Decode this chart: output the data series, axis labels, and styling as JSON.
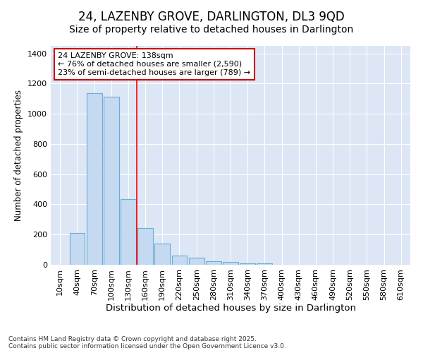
{
  "title": "24, LAZENBY GROVE, DARLINGTON, DL3 9QD",
  "subtitle": "Size of property relative to detached houses in Darlington",
  "xlabel": "Distribution of detached houses by size in Darlington",
  "ylabel": "Number of detached properties",
  "categories": [
    "10sqm",
    "40sqm",
    "70sqm",
    "100sqm",
    "130sqm",
    "160sqm",
    "190sqm",
    "220sqm",
    "250sqm",
    "280sqm",
    "310sqm",
    "340sqm",
    "370sqm",
    "400sqm",
    "430sqm",
    "460sqm",
    "490sqm",
    "520sqm",
    "550sqm",
    "580sqm",
    "610sqm"
  ],
  "values": [
    0,
    210,
    1135,
    1115,
    435,
    245,
    140,
    60,
    45,
    25,
    20,
    10,
    10,
    0,
    0,
    0,
    0,
    0,
    0,
    0,
    0
  ],
  "bar_color": "#c5d9f0",
  "bar_edge_color": "#6baed6",
  "plot_bg_color": "#dce6f5",
  "fig_bg_color": "#ffffff",
  "grid_color": "#ffffff",
  "red_line_x": 4.5,
  "annotation_text": "24 LAZENBY GROVE: 138sqm\n← 76% of detached houses are smaller (2,590)\n23% of semi-detached houses are larger (789) →",
  "annotation_box_facecolor": "#ffffff",
  "annotation_box_edgecolor": "#cc0000",
  "ylim": [
    0,
    1450
  ],
  "yticks": [
    0,
    200,
    400,
    600,
    800,
    1000,
    1200,
    1400
  ],
  "footnote": "Contains HM Land Registry data © Crown copyright and database right 2025.\nContains public sector information licensed under the Open Government Licence v3.0.",
  "title_fontsize": 12,
  "subtitle_fontsize": 10,
  "xlabel_fontsize": 9.5,
  "ylabel_fontsize": 8.5,
  "tick_fontsize": 8,
  "annotation_fontsize": 8,
  "footnote_fontsize": 6.5
}
